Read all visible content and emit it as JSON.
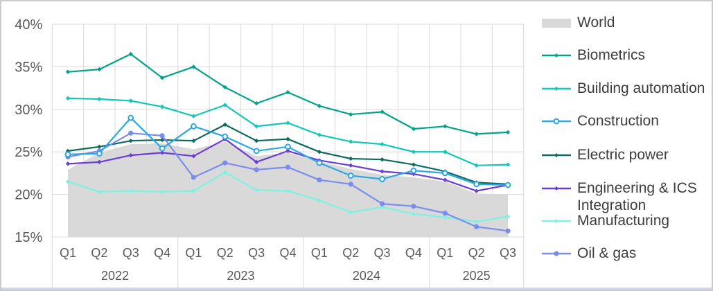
{
  "chart_data": {
    "type": "area+line",
    "title": "",
    "unit": "%",
    "y_axis": {
      "min": 15,
      "max": 40,
      "tick_step": 5,
      "ticks": [
        "40%",
        "35%",
        "30%",
        "25%",
        "20%",
        "15%"
      ],
      "grid": true
    },
    "x_categories": [
      "Q1",
      "Q2",
      "Q3",
      "Q4",
      "Q1",
      "Q2",
      "Q3",
      "Q4",
      "Q1",
      "Q2",
      "Q3",
      "Q4",
      "Q1",
      "Q2",
      "Q3"
    ],
    "year_groups": [
      {
        "label": "2022",
        "quarters": 4
      },
      {
        "label": "2023",
        "quarters": 4
      },
      {
        "label": "2024",
        "quarters": 4
      },
      {
        "label": "2025",
        "quarters": 3
      }
    ],
    "legend_position": "right",
    "series": [
      {
        "name": "World",
        "slug": "world",
        "type": "area",
        "color": "#d9d9d9",
        "marker": "none",
        "values": [
          22.9,
          24.9,
          25.9,
          26.0,
          25.3,
          26.2,
          24.5,
          24.9,
          23.9,
          23.0,
          22.3,
          22.0,
          21.5,
          20.1,
          20.0
        ]
      },
      {
        "name": "Biometrics",
        "slug": "biometrics",
        "type": "line",
        "color": "#00A38C",
        "marker": "diamond",
        "values": [
          34.4,
          34.7,
          36.5,
          33.7,
          35.0,
          32.6,
          30.7,
          32.0,
          30.4,
          29.4,
          29.7,
          27.7,
          28.0,
          27.1,
          27.3
        ]
      },
      {
        "name": "Building automation",
        "slug": "building-automation",
        "type": "line",
        "color": "#0FC8B8",
        "marker": "diamond",
        "values": [
          31.3,
          31.2,
          31.0,
          30.3,
          29.2,
          30.5,
          28.0,
          28.4,
          27.0,
          26.2,
          25.9,
          25.0,
          25.0,
          23.4,
          23.5
        ]
      },
      {
        "name": "Construction",
        "slug": "construction",
        "type": "line",
        "color": "#2BA7E3",
        "marker": "open-circle",
        "values": [
          24.7,
          24.8,
          29.0,
          25.4,
          28.0,
          26.8,
          25.1,
          25.6,
          23.7,
          22.2,
          21.8,
          22.8,
          22.5,
          21.2,
          21.1
        ]
      },
      {
        "name": "Electric power",
        "slug": "electric-power",
        "type": "line",
        "color": "#0D6B60",
        "marker": "diamond",
        "values": [
          25.1,
          25.6,
          26.3,
          26.4,
          26.3,
          28.2,
          26.3,
          26.5,
          25.0,
          24.2,
          24.1,
          23.5,
          22.7,
          21.4,
          21.2
        ]
      },
      {
        "name": "Engineering & ICS Integration",
        "slug": "engineering-ics-integration",
        "type": "line",
        "color": "#6A3CD9",
        "marker": "diamond",
        "values": [
          23.6,
          23.8,
          24.6,
          24.9,
          24.5,
          26.5,
          23.8,
          25.1,
          24.0,
          23.4,
          22.7,
          22.4,
          21.7,
          20.4,
          21.1
        ]
      },
      {
        "name": "Manufacturing",
        "slug": "manufacturing",
        "type": "line",
        "color": "#7CF2E2",
        "marker": "diamond",
        "values": [
          21.5,
          20.3,
          20.4,
          20.3,
          20.4,
          22.6,
          20.5,
          20.4,
          19.3,
          17.9,
          18.5,
          17.7,
          17.3,
          16.8,
          17.4
        ]
      },
      {
        "name": "Oil & gas",
        "slug": "oil-gas",
        "type": "line",
        "color": "#7B8CEF",
        "marker": "circle",
        "values": [
          24.4,
          25.1,
          27.2,
          26.9,
          22.0,
          23.7,
          22.9,
          23.2,
          21.7,
          21.2,
          18.9,
          18.6,
          17.8,
          16.2,
          15.7
        ]
      }
    ]
  }
}
